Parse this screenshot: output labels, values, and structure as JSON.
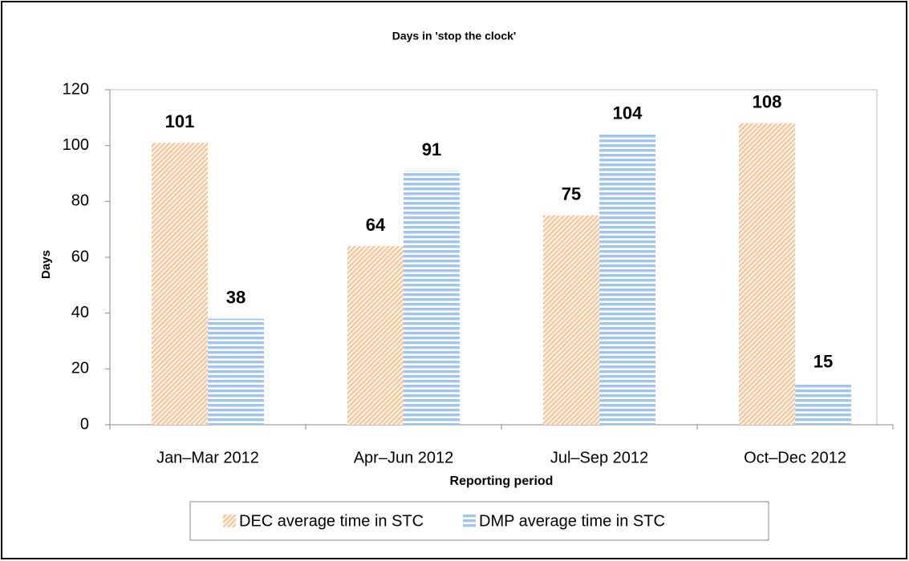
{
  "chart_data": {
    "type": "bar",
    "title": "Days in 'stop the clock'",
    "x_label": "Reporting period",
    "y_label": "Days",
    "categories": [
      "Jan–Mar 2012",
      "Apr–Jun 2012",
      "Jul–Sep 2012",
      "Oct–Dec 2012"
    ],
    "series": [
      {
        "name": "DEC average time in STC",
        "color": "#f9c79b",
        "values": [
          101,
          64,
          75,
          108
        ]
      },
      {
        "name": "DMP average time in STC",
        "color": "#9ec5ee",
        "values": [
          38,
          91,
          104,
          15
        ]
      }
    ],
    "ylim": [
      0,
      120
    ],
    "yticks": [
      0,
      20,
      40,
      60,
      80,
      100,
      120
    ],
    "grid": false,
    "legend": "bottom"
  }
}
